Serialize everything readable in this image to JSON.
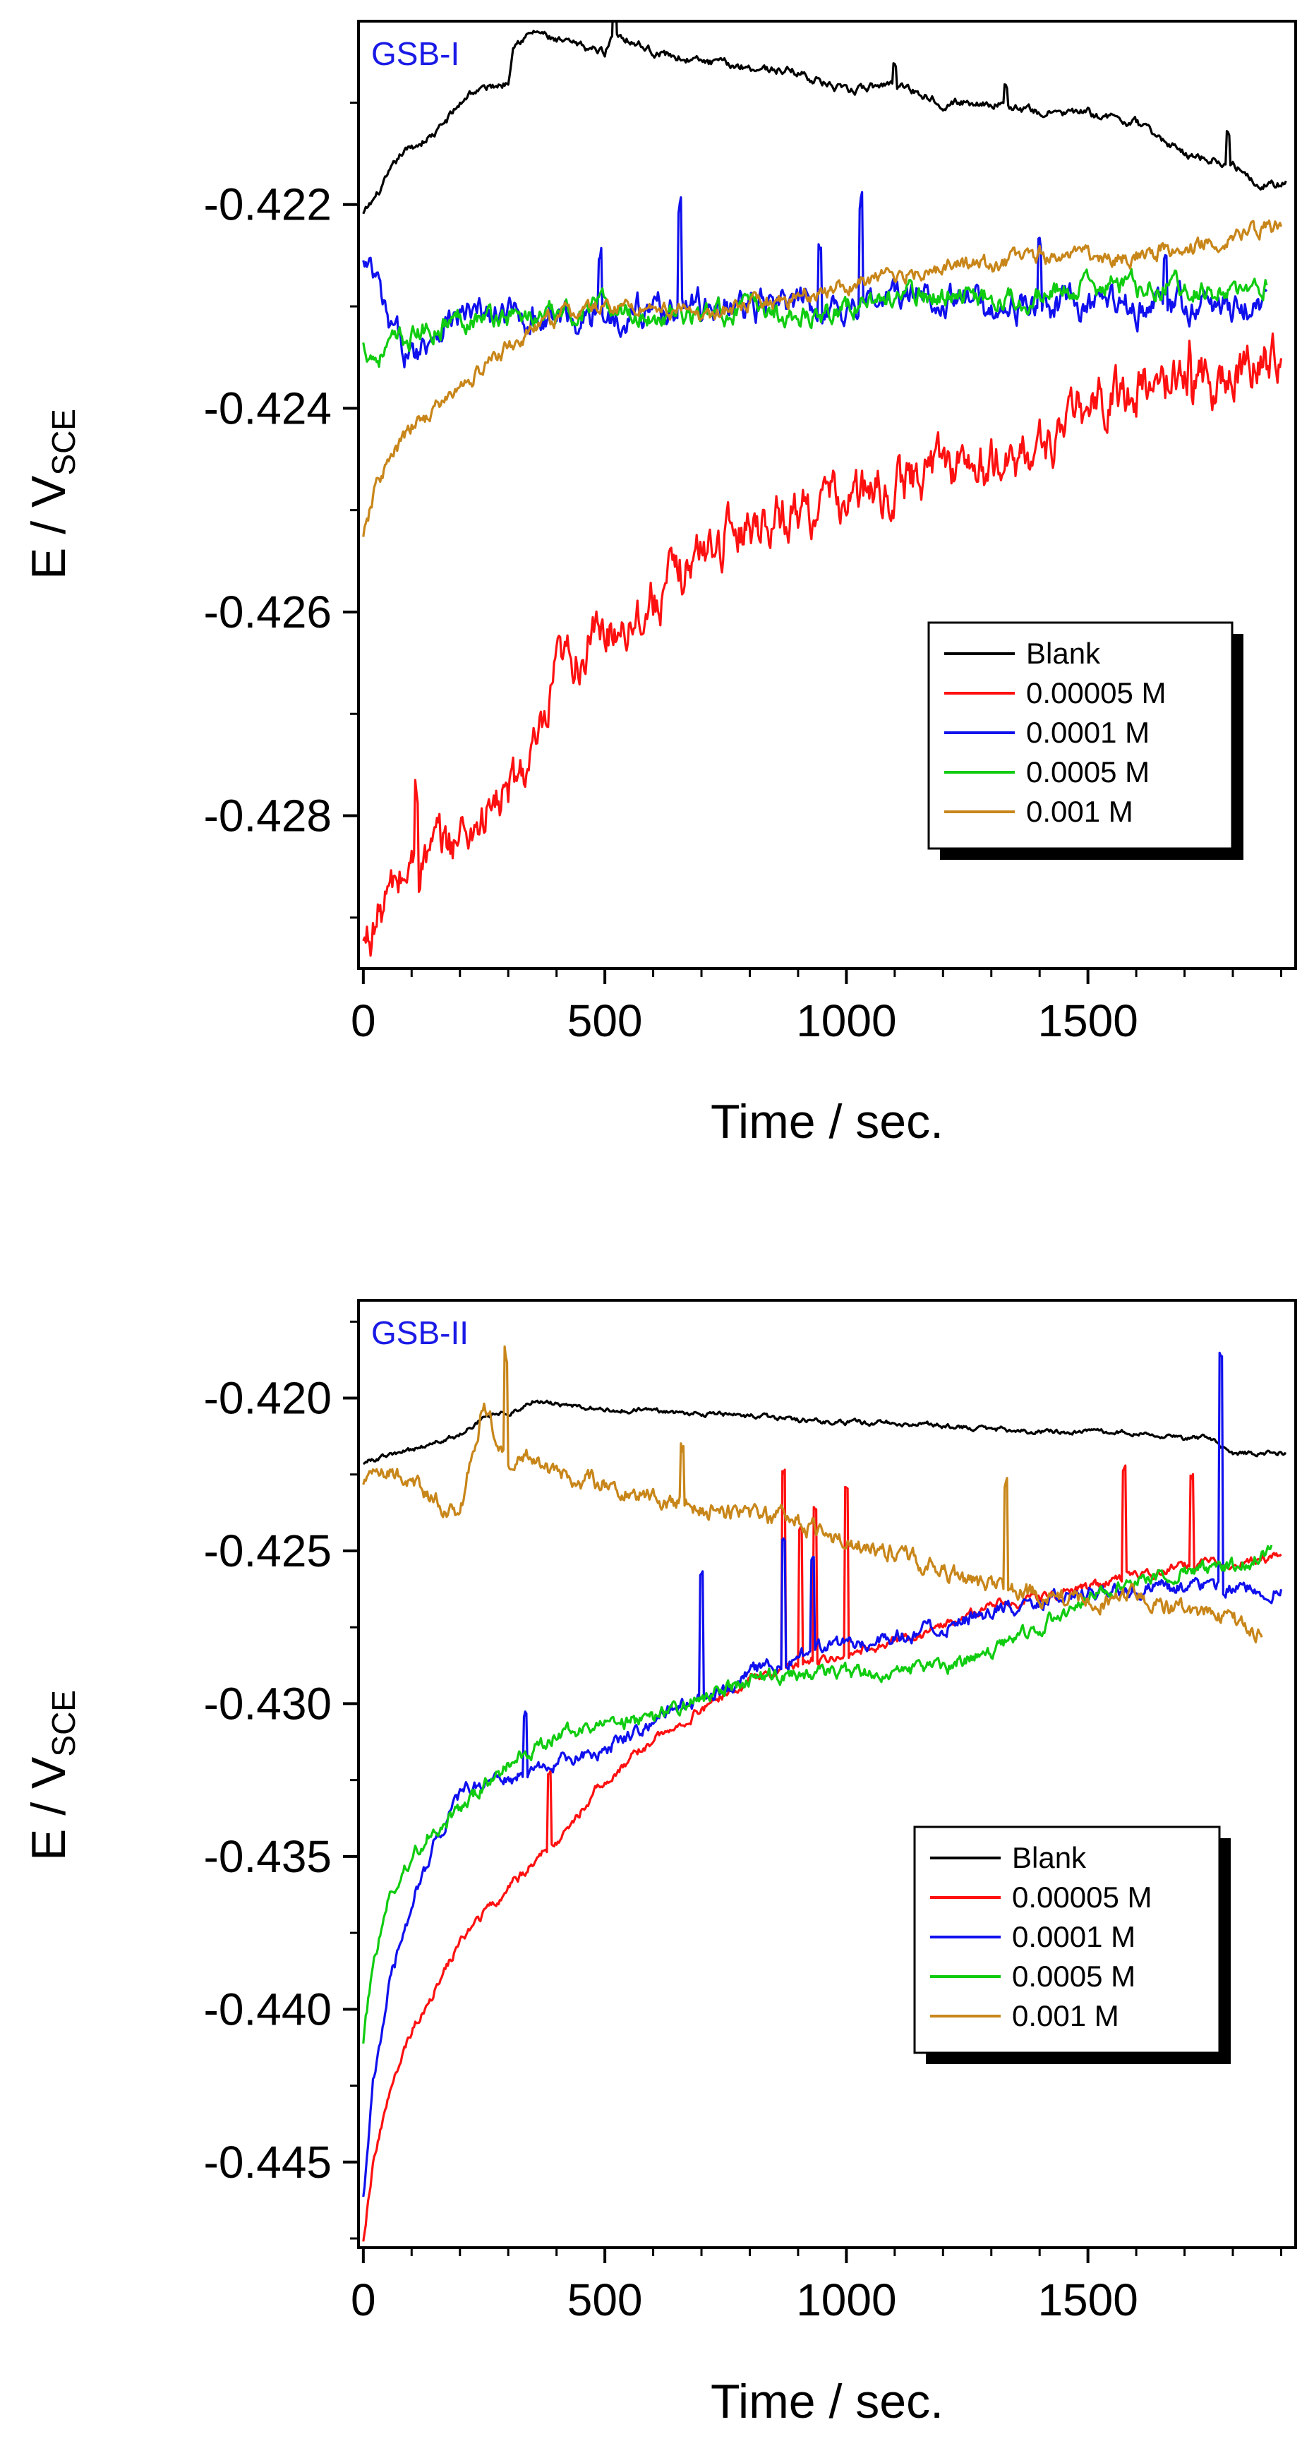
{
  "chart_data": [
    {
      "type": "line",
      "panel_label": "GSB-I",
      "panel_label_color": "#1a1ae6",
      "xlabel": "Time / sec.",
      "ylabel_main": "E / V",
      "ylabel_sub": "SCE",
      "xlim": [
        -10,
        1930
      ],
      "ylim": [
        -0.4295,
        -0.4202
      ],
      "xticks": [
        0,
        500,
        1000,
        1500
      ],
      "xtick_labels": [
        "0",
        "500",
        "1000",
        "1500"
      ],
      "yticks": [
        -0.422,
        -0.424,
        -0.426,
        -0.428
      ],
      "ytick_labels": [
        "-0.422",
        "-0.424",
        "-0.426",
        "-0.428"
      ],
      "legend_position": "right-middle",
      "series": [
        {
          "name": "Blank",
          "color": "#000000",
          "noise": 3e-05,
          "x": [
            0,
            30,
            80,
            150,
            220,
            300,
            310,
            360,
            400,
            500,
            520,
            600,
            700,
            900,
            1000,
            1100,
            1200,
            1300,
            1400,
            1500,
            1600,
            1700,
            1800,
            1860,
            1910
          ],
          "values": [
            -0.4221,
            -0.4219,
            -0.4215,
            -0.4213,
            -0.4209,
            -0.4208,
            -0.4204,
            -0.4203,
            -0.4204,
            -0.4205,
            -0.4203,
            -0.4205,
            -0.4206,
            -0.4207,
            -0.4209,
            -0.4208,
            -0.421,
            -0.421,
            -0.4211,
            -0.4211,
            -0.4212,
            -0.4215,
            -0.4216,
            -0.4218,
            -0.4218
          ],
          "spikes": [
            [
              520,
              0.0004
            ],
            [
              1100,
              0.0002
            ],
            [
              1330,
              0.0002
            ],
            [
              1790,
              0.0003
            ]
          ]
        },
        {
          "name": "0.00005 M",
          "color": "#ff1010",
          "noise": 0.00018,
          "x": [
            0,
            50,
            100,
            200,
            300,
            380,
            400,
            500,
            600,
            700,
            800,
            900,
            1000,
            1100,
            1200,
            1300,
            1400,
            1500,
            1600,
            1700,
            1800,
            1900
          ],
          "values": [
            -0.4293,
            -0.4288,
            -0.4285,
            -0.4282,
            -0.4278,
            -0.4272,
            -0.4266,
            -0.4262,
            -0.4259,
            -0.4254,
            -0.4251,
            -0.425,
            -0.4249,
            -0.4248,
            -0.4245,
            -0.4246,
            -0.4244,
            -0.424,
            -0.4238,
            -0.4237,
            -0.4237,
            -0.4234
          ],
          "spikes": [
            [
              110,
              0.0008
            ],
            [
              1710,
              0.0004
            ]
          ]
        },
        {
          "name": "0.0001 M",
          "color": "#1010ee",
          "noise": 0.00011,
          "x": [
            0,
            30,
            50,
            100,
            150,
            200,
            300,
            400,
            500,
            600,
            700,
            800,
            900,
            1000,
            1100,
            1200,
            1300,
            1400,
            1500,
            1600,
            1700,
            1800,
            1870
          ],
          "values": [
            -0.4226,
            -0.4228,
            -0.4232,
            -0.4235,
            -0.4232,
            -0.4231,
            -0.4231,
            -0.4231,
            -0.4231,
            -0.423,
            -0.423,
            -0.423,
            -0.423,
            -0.423,
            -0.4229,
            -0.4229,
            -0.423,
            -0.423,
            -0.423,
            -0.423,
            -0.423,
            -0.423,
            -0.423
          ],
          "spikes": [
            [
              490,
              0.0006
            ],
            [
              655,
              0.001
            ],
            [
              945,
              0.0007
            ],
            [
              1030,
              0.001
            ],
            [
              1400,
              0.0006
            ],
            [
              1660,
              0.0005
            ]
          ]
        },
        {
          "name": "0.0005 M",
          "color": "#10cc10",
          "noise": 8e-05,
          "x": [
            0,
            30,
            50,
            100,
            150,
            200,
            300,
            400,
            500,
            600,
            700,
            800,
            900,
            1000,
            1100,
            1200,
            1300,
            1400,
            1500,
            1600,
            1700,
            1800,
            1870
          ],
          "values": [
            -0.4234,
            -0.4235,
            -0.4234,
            -0.4233,
            -0.4232,
            -0.4231,
            -0.4231,
            -0.4231,
            -0.423,
            -0.4231,
            -0.4231,
            -0.423,
            -0.4231,
            -0.423,
            -0.4229,
            -0.4229,
            -0.4229,
            -0.4229,
            -0.4228,
            -0.4228,
            -0.4228,
            -0.4229,
            -0.4228
          ],
          "spikes": []
        },
        {
          "name": "0.001 M",
          "color": "#c8861a",
          "noise": 6e-05,
          "x": [
            0,
            30,
            100,
            200,
            300,
            400,
            500,
            600,
            700,
            800,
            900,
            1000,
            1100,
            1200,
            1300,
            1400,
            1500,
            1600,
            1700,
            1800,
            1900
          ],
          "values": [
            -0.4253,
            -0.4247,
            -0.4242,
            -0.4238,
            -0.4234,
            -0.4231,
            -0.423,
            -0.423,
            -0.4231,
            -0.423,
            -0.4229,
            -0.4228,
            -0.4227,
            -0.4226,
            -0.4226,
            -0.4225,
            -0.4225,
            -0.4225,
            -0.4224,
            -0.4223,
            -0.4222
          ],
          "spikes": []
        }
      ]
    },
    {
      "type": "line",
      "panel_label": "GSB-II",
      "panel_label_color": "#1a1ae6",
      "xlabel": "Time / sec.",
      "ylabel_main": "E / V",
      "ylabel_sub": "SCE",
      "xlim": [
        -10,
        1930
      ],
      "ylim": [
        -0.4478,
        -0.4168
      ],
      "xticks": [
        0,
        500,
        1000,
        1500
      ],
      "xtick_labels": [
        "0",
        "500",
        "1000",
        "1500"
      ],
      "yticks": [
        -0.42,
        -0.425,
        -0.43,
        -0.435,
        -0.44,
        -0.445
      ],
      "ytick_labels": [
        "-0.420",
        "-0.425",
        "-0.430",
        "-0.435",
        "-0.440",
        "-0.445"
      ],
      "legend_position": "right-middle",
      "series": [
        {
          "name": "Blank",
          "color": "#000000",
          "noise": 6e-05,
          "x": [
            0,
            100,
            200,
            250,
            300,
            350,
            400,
            500,
            600,
            700,
            800,
            900,
            1000,
            1100,
            1200,
            1300,
            1400,
            1500,
            1600,
            1700,
            1750,
            1800,
            1910
          ],
          "values": [
            -0.4221,
            -0.4217,
            -0.4212,
            -0.4206,
            -0.4205,
            -0.4201,
            -0.4202,
            -0.4204,
            -0.4204,
            -0.4205,
            -0.4206,
            -0.4207,
            -0.4208,
            -0.4208,
            -0.4209,
            -0.421,
            -0.4211,
            -0.4211,
            -0.4211,
            -0.4213,
            -0.4213,
            -0.4218,
            -0.4218
          ],
          "spikes": []
        },
        {
          "name": "0.00005 M",
          "color": "#ff1010",
          "noise": 0.00012,
          "x": [
            0,
            20,
            50,
            100,
            150,
            200,
            300,
            400,
            500,
            600,
            700,
            800,
            900,
            1000,
            1100,
            1200,
            1300,
            1400,
            1500,
            1600,
            1700,
            1800,
            1900
          ],
          "values": [
            -0.4475,
            -0.445,
            -0.443,
            -0.4407,
            -0.4393,
            -0.4378,
            -0.436,
            -0.4345,
            -0.4325,
            -0.4312,
            -0.4302,
            -0.4292,
            -0.4287,
            -0.4283,
            -0.428,
            -0.4275,
            -0.4268,
            -0.4265,
            -0.4262,
            -0.4258,
            -0.4255,
            -0.4254,
            -0.4252
          ],
          "spikes": [
            [
              385,
              0.0025
            ],
            [
              870,
              0.0065
            ],
            [
              905,
              0.0045
            ],
            [
              935,
              0.005
            ],
            [
              1000,
              0.0055
            ],
            [
              1575,
              0.0035
            ],
            [
              1715,
              0.003
            ]
          ]
        },
        {
          "name": "0.0001 M",
          "color": "#1010ee",
          "noise": 0.00018,
          "x": [
            0,
            20,
            50,
            100,
            150,
            200,
            250,
            300,
            400,
            500,
            600,
            700,
            800,
            900,
            1000,
            1100,
            1200,
            1300,
            1400,
            1500,
            1600,
            1700,
            1800,
            1900
          ],
          "values": [
            -0.446,
            -0.4425,
            -0.4395,
            -0.4365,
            -0.4345,
            -0.433,
            -0.4325,
            -0.4325,
            -0.432,
            -0.4315,
            -0.4305,
            -0.4298,
            -0.429,
            -0.4285,
            -0.428,
            -0.4278,
            -0.4275,
            -0.427,
            -0.4266,
            -0.4264,
            -0.4262,
            -0.4262,
            -0.4262,
            -0.4263
          ],
          "spikes": [
            [
              335,
              0.002
            ],
            [
              700,
              0.004
            ],
            [
              870,
              0.004
            ],
            [
              930,
              0.003
            ],
            [
              1775,
              0.0077
            ]
          ]
        },
        {
          "name": "0.0005 M",
          "color": "#10cc10",
          "noise": 0.00018,
          "x": [
            0,
            20,
            50,
            100,
            150,
            200,
            300,
            400,
            500,
            600,
            700,
            800,
            900,
            1000,
            1100,
            1200,
            1300,
            1400,
            1500,
            1600,
            1700,
            1800,
            1880
          ],
          "values": [
            -0.441,
            -0.4385,
            -0.4365,
            -0.435,
            -0.434,
            -0.4335,
            -0.432,
            -0.431,
            -0.4307,
            -0.4305,
            -0.4298,
            -0.4292,
            -0.429,
            -0.429,
            -0.429,
            -0.4288,
            -0.4283,
            -0.4275,
            -0.4265,
            -0.426,
            -0.4257,
            -0.4255,
            -0.425
          ],
          "spikes": []
        },
        {
          "name": "0.001 M",
          "color": "#c8861a",
          "noise": 0.00022,
          "x": [
            0,
            30,
            100,
            200,
            250,
            280,
            300,
            350,
            400,
            500,
            600,
            700,
            800,
            900,
            1000,
            1100,
            1200,
            1300,
            1400,
            1500,
            1600,
            1700,
            1800,
            1860
          ],
          "values": [
            -0.4227,
            -0.4222,
            -0.4228,
            -0.4238,
            -0.42,
            -0.4215,
            -0.422,
            -0.4218,
            -0.4225,
            -0.4228,
            -0.4232,
            -0.4236,
            -0.4238,
            -0.424,
            -0.4247,
            -0.425,
            -0.4257,
            -0.4262,
            -0.4264,
            -0.4268,
            -0.4265,
            -0.427,
            -0.4273,
            -0.4278
          ],
          "spikes": [
            [
              295,
              0.0033
            ],
            [
              660,
              0.0018
            ],
            [
              1330,
              0.0035
            ]
          ]
        }
      ]
    }
  ]
}
